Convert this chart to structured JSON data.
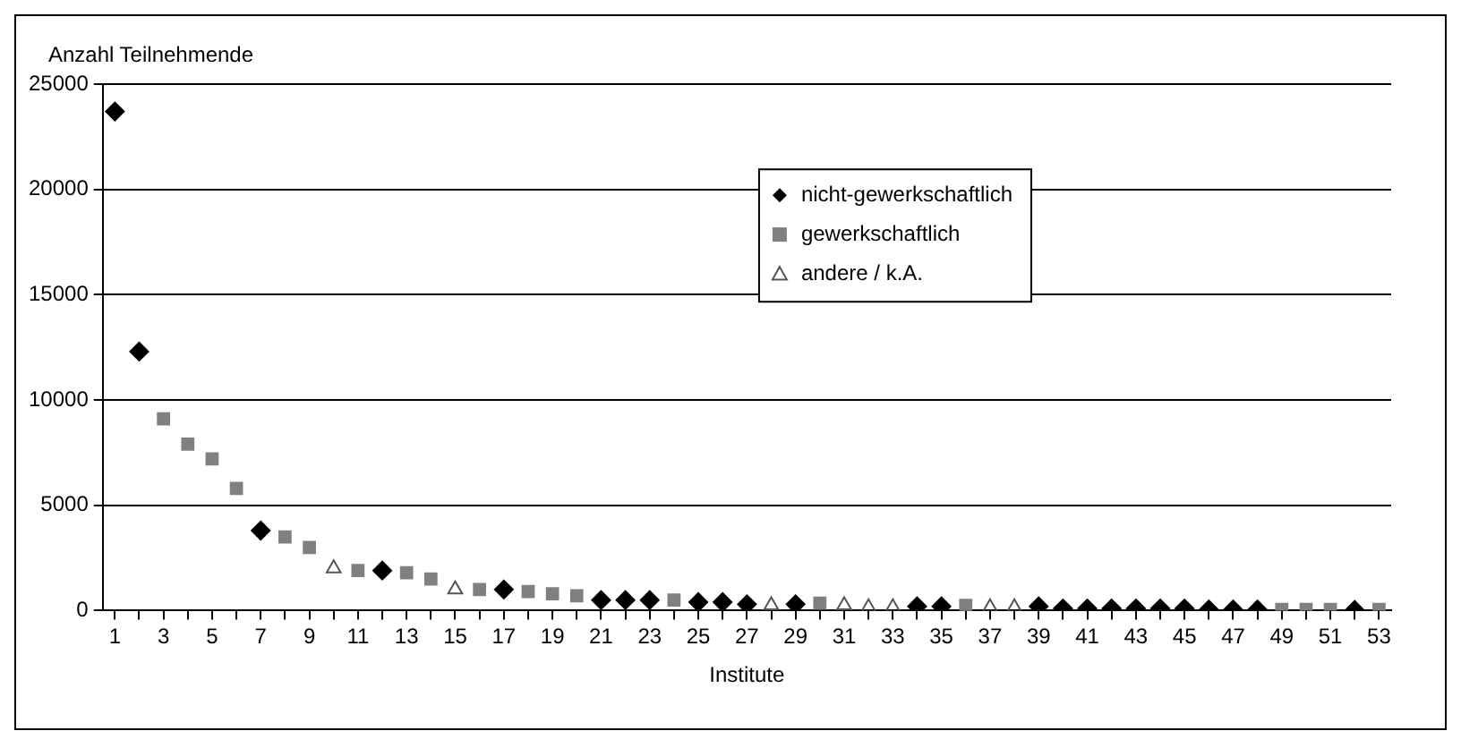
{
  "chart_data": {
    "type": "scatter",
    "ylabel": "Anzahl Teilnehmende",
    "xlabel": "Institute",
    "x": [
      1,
      2,
      3,
      4,
      5,
      6,
      7,
      8,
      9,
      10,
      11,
      12,
      13,
      14,
      15,
      16,
      17,
      18,
      19,
      20,
      21,
      22,
      23,
      24,
      25,
      26,
      27,
      28,
      29,
      30,
      31,
      32,
      33,
      34,
      35,
      36,
      37,
      38,
      39,
      40,
      41,
      42,
      43,
      44,
      45,
      46,
      47,
      48,
      49,
      50,
      51,
      52,
      53
    ],
    "series": [
      {
        "name": "nicht-gewerkschaftlich",
        "color": "#000000",
        "marker": "diamond",
        "values": [
          23700,
          12300,
          null,
          null,
          null,
          null,
          3800,
          null,
          null,
          null,
          null,
          1900,
          null,
          null,
          null,
          null,
          1000,
          null,
          null,
          null,
          500,
          500,
          500,
          null,
          400,
          400,
          300,
          null,
          300,
          null,
          null,
          null,
          null,
          200,
          200,
          null,
          null,
          null,
          200,
          100,
          100,
          100,
          100,
          100,
          100,
          50,
          50,
          50,
          null,
          null,
          null,
          30,
          null
        ]
      },
      {
        "name": "gewerkschaftlich",
        "color": "#808080",
        "marker": "square",
        "values": [
          null,
          null,
          9100,
          7900,
          7200,
          5800,
          null,
          3500,
          3000,
          null,
          1900,
          null,
          1800,
          1500,
          null,
          1000,
          null,
          900,
          800,
          700,
          null,
          null,
          null,
          500,
          null,
          null,
          null,
          null,
          null,
          350,
          null,
          null,
          null,
          null,
          null,
          250,
          null,
          null,
          null,
          null,
          null,
          null,
          null,
          null,
          null,
          null,
          null,
          null,
          50,
          50,
          50,
          null,
          50
        ]
      },
      {
        "name": "andere / k.A.",
        "color": "#555555",
        "marker": "triangle",
        "values": [
          null,
          null,
          null,
          null,
          null,
          null,
          null,
          null,
          null,
          2000,
          null,
          null,
          null,
          null,
          1000,
          null,
          null,
          null,
          null,
          null,
          null,
          null,
          null,
          null,
          null,
          null,
          null,
          250,
          null,
          null,
          250,
          150,
          150,
          null,
          null,
          null,
          150,
          150,
          null,
          null,
          null,
          null,
          null,
          null,
          null,
          null,
          null,
          null,
          null,
          null,
          null,
          null,
          null
        ]
      }
    ],
    "xlim": [
      0.5,
      53.5
    ],
    "xticks": [
      1,
      {
        "value": 2,
        "label": null
      },
      3,
      {
        "value": 4,
        "label": null
      },
      5,
      {
        "value": 6,
        "label": null
      },
      7,
      {
        "value": 8,
        "label": null
      },
      9,
      {
        "value": 10,
        "label": null
      },
      11,
      {
        "value": 12,
        "label": null
      },
      13,
      {
        "value": 14,
        "label": null
      },
      15,
      {
        "value": 16,
        "label": null
      },
      17,
      {
        "value": 18,
        "label": null
      },
      19,
      {
        "value": 20,
        "label": null
      },
      21,
      {
        "value": 22,
        "label": null
      },
      23,
      {
        "value": 24,
        "label": null
      },
      25,
      {
        "value": 26,
        "label": null
      },
      27,
      {
        "value": 28,
        "label": null
      },
      29,
      {
        "value": 30,
        "label": null
      },
      31,
      {
        "value": 32,
        "label": null
      },
      33,
      {
        "value": 34,
        "label": null
      },
      35,
      {
        "value": 36,
        "label": null
      },
      37,
      {
        "value": 38,
        "label": null
      },
      39,
      {
        "value": 40,
        "label": null
      },
      41,
      {
        "value": 42,
        "label": null
      },
      43,
      {
        "value": 44,
        "label": null
      },
      45,
      {
        "value": 46,
        "label": null
      },
      47,
      {
        "value": 48,
        "label": null
      },
      49,
      {
        "value": 50,
        "label": null
      },
      51,
      {
        "value": 52,
        "label": null
      },
      53
    ],
    "ylim": [
      0,
      25000
    ],
    "yticks": [
      0,
      5000,
      10000,
      15000,
      20000,
      25000
    ],
    "grid": "y",
    "legend": "top right"
  }
}
